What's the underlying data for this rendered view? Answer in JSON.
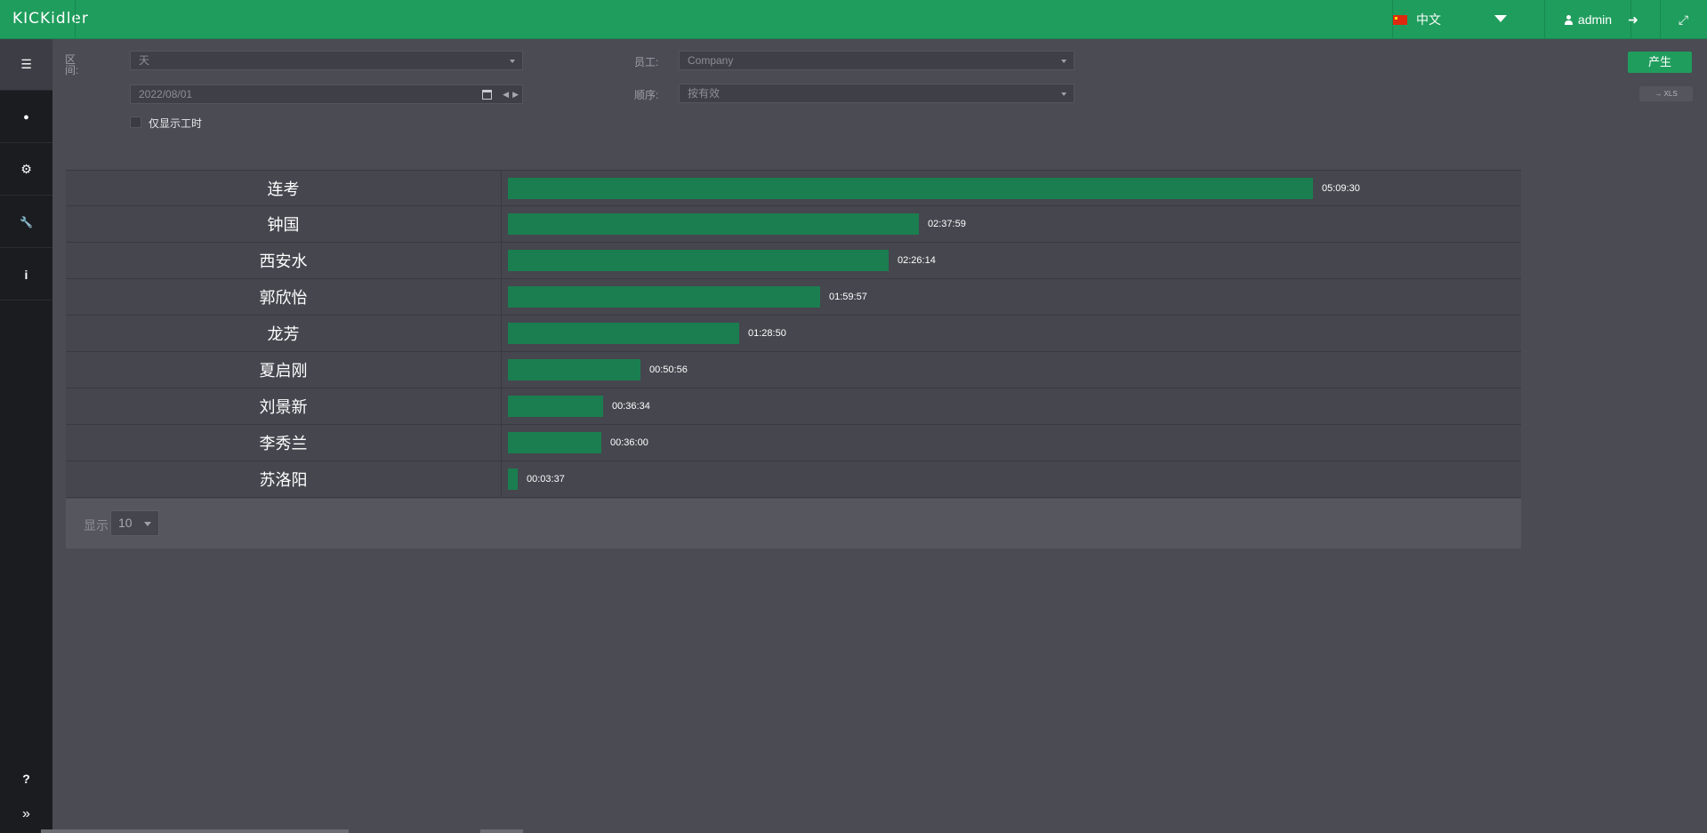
{
  "app": {
    "logo": "KICKidler",
    "language": "中文",
    "user": "admin"
  },
  "colors": {
    "topbar": "#1f9d5d",
    "bar": "#1b7e50",
    "sidebar": "#1b1c20",
    "background": "#4a4b53"
  },
  "sidebar": {
    "items": [
      {
        "icon": "list-icon",
        "glyph": "☰"
      },
      {
        "icon": "user-icon",
        "glyph": "●"
      },
      {
        "icon": "gears-icon",
        "glyph": "⚙"
      },
      {
        "icon": "wrench-icon",
        "glyph": "🔧"
      },
      {
        "icon": "info-icon",
        "glyph": "i"
      }
    ],
    "bottom": [
      {
        "icon": "help-icon",
        "glyph": "?"
      },
      {
        "icon": "expand-sidebar-icon",
        "glyph": "»"
      }
    ]
  },
  "topbar_icons": {
    "logout": "➜",
    "fullscreen": "⤢"
  },
  "filters": {
    "period_label": "区间:",
    "period_value": "天",
    "date_value": "2022/08/01",
    "employee_label": "员工:",
    "employee_value": "Company",
    "order_label": "顺序:",
    "order_value": "按有效",
    "only_work_hours": "仅显示工时",
    "generate_button": "产生",
    "export_xls": "→ XLS"
  },
  "report": {
    "rows": [
      {
        "name": "连考",
        "time": "05:09:30",
        "seconds": 18570
      },
      {
        "name": "钟国",
        "time": "02:37:59",
        "seconds": 9479
      },
      {
        "name": "西安水",
        "time": "02:26:14",
        "seconds": 8774
      },
      {
        "name": "郭欣怡",
        "time": "01:59:57",
        "seconds": 7197
      },
      {
        "name": "龙芳",
        "time": "01:28:50",
        "seconds": 5330
      },
      {
        "name": "夏启刚",
        "time": "00:50:56",
        "seconds": 3056
      },
      {
        "name": "刘景新",
        "time": "00:36:34",
        "seconds": 2194
      },
      {
        "name": "李秀兰",
        "time": "00:36:00",
        "seconds": 2160
      },
      {
        "name": "苏洛阳",
        "time": "00:03:37",
        "seconds": 217
      }
    ],
    "show_label": "显示",
    "page_size": "10"
  }
}
